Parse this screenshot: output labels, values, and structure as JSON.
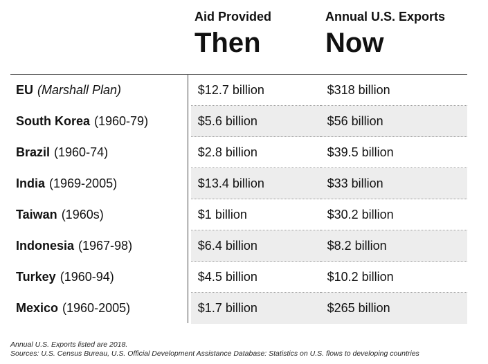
{
  "header": {
    "then_subhead": "Aid Provided",
    "then_title": "Then",
    "now_subhead": "Annual U.S. Exports",
    "now_title": "Now"
  },
  "chart_data": {
    "type": "table",
    "columns": [
      "",
      "Then",
      "Now"
    ],
    "rows": [
      {
        "country": "EU",
        "period": "(Marshall Plan)",
        "period_italic": true,
        "then": "$12.7 billion",
        "now": "$318 billion",
        "then_value": 12.7,
        "now_value": 318
      },
      {
        "country": "South Korea",
        "period": "(1960-79)",
        "period_italic": false,
        "then": "$5.6 billion",
        "now": "$56 billion",
        "then_value": 5.6,
        "now_value": 56
      },
      {
        "country": "Brazil",
        "period": "(1960-74)",
        "period_italic": false,
        "then": "$2.8 billion",
        "now": "$39.5 billion",
        "then_value": 2.8,
        "now_value": 39.5
      },
      {
        "country": "India",
        "period": "(1969-2005)",
        "period_italic": false,
        "then": "$13.4 billion",
        "now": "$33 billion",
        "then_value": 13.4,
        "now_value": 33
      },
      {
        "country": "Taiwan",
        "period": "(1960s)",
        "period_italic": false,
        "then": "$1 billion",
        "now": "$30.2 billion",
        "then_value": 1,
        "now_value": 30.2
      },
      {
        "country": "Indonesia",
        "period": "(1967-98)",
        "period_italic": false,
        "then": "$6.4 billion",
        "now": "$8.2 billion",
        "then_value": 6.4,
        "now_value": 8.2
      },
      {
        "country": "Turkey",
        "period": "(1960-94)",
        "period_italic": false,
        "then": "$4.5 billion",
        "now": "$10.2 billion",
        "then_value": 4.5,
        "now_value": 10.2
      },
      {
        "country": "Mexico",
        "period": "(1960-2005)",
        "period_italic": false,
        "then": "$1.7 billion",
        "now": "$265 billion",
        "then_value": 1.7,
        "now_value": 265
      }
    ],
    "units": "billion USD"
  },
  "footnote": {
    "line1": "Annual U.S. Exports listed are 2018.",
    "line2": "Sources: U.S. Census Bureau, U.S. Official Development Assistance Database: Statistics on U.S. flows to developing countries"
  },
  "colors": {
    "shade": "#ededed",
    "text": "#111111",
    "rule": "#555555"
  }
}
